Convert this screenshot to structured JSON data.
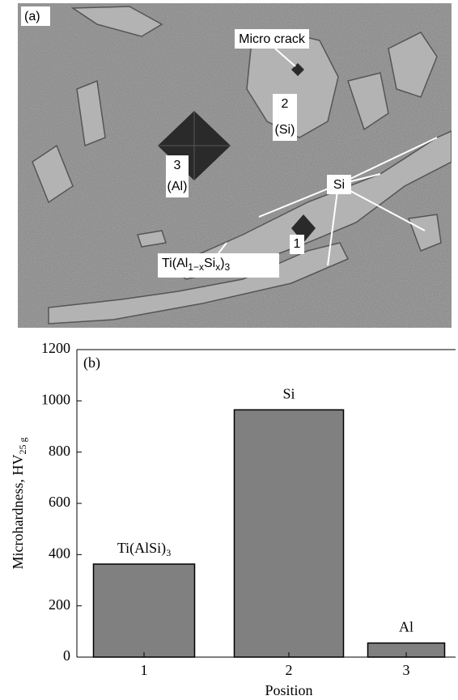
{
  "micrograph": {
    "panel_label": "(a)",
    "labels": [
      "Micro crack",
      "2",
      "(Si)",
      "3",
      "(Al)",
      "Si",
      "1"
    ],
    "formula": [
      {
        "text": "Ti(Al"
      },
      {
        "sub": "1−x"
      },
      {
        "text": "Si"
      },
      {
        "sub": "x"
      },
      {
        "text": ")"
      },
      {
        "sub": "3"
      }
    ]
  },
  "chart_data": {
    "type": "bar",
    "panel_label": "(b)",
    "y_label": "Microhardness, HV",
    "y_label_subscript": "25 g",
    "x_label": "Position",
    "categories": [
      "1",
      "2",
      "3"
    ],
    "values": [
      363,
      965,
      55
    ],
    "bar_labels": [
      {
        "text": "Ti(AlSi)",
        "sub": "3"
      },
      {
        "text": "Si"
      },
      {
        "text": "Al"
      }
    ],
    "color": "#808080",
    "ylim": [
      0,
      1200
    ],
    "yticks": [
      0,
      200,
      400,
      600,
      800,
      1000,
      1200
    ]
  }
}
